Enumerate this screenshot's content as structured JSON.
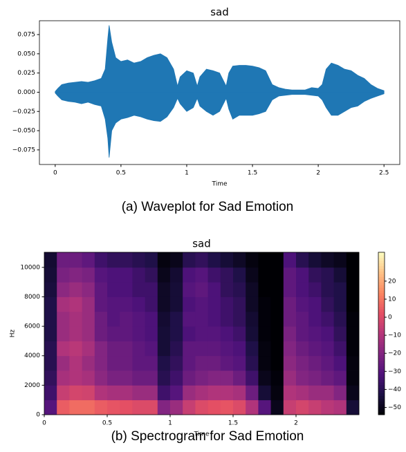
{
  "chart_data": [
    {
      "type": "waveform",
      "title": "sad",
      "xlabel": "Time",
      "caption": "(a) Waveplot for Sad Emotion",
      "color": "#1f77b4",
      "xlim": [
        -0.12,
        2.62
      ],
      "ylim": [
        -0.094,
        0.093
      ],
      "xticks": [
        0,
        0.5,
        1,
        1.5,
        2,
        2.5
      ],
      "yticks": [
        {
          "value": -0.075,
          "label": "−0.075"
        },
        {
          "value": -0.05,
          "label": "−0.050"
        },
        {
          "value": -0.025,
          "label": "−0.025"
        },
        {
          "value": 0,
          "label": "0.000"
        },
        {
          "value": 0.025,
          "label": "0.025"
        },
        {
          "value": 0.05,
          "label": "0.050"
        },
        0.075
      ],
      "x": [
        0,
        0.02,
        0.05,
        0.1,
        0.15,
        0.2,
        0.25,
        0.3,
        0.35,
        0.38,
        0.4,
        0.41,
        0.43,
        0.46,
        0.5,
        0.55,
        0.6,
        0.65,
        0.7,
        0.75,
        0.8,
        0.85,
        0.9,
        0.93,
        0.95,
        1.0,
        1.05,
        1.08,
        1.1,
        1.15,
        1.2,
        1.25,
        1.3,
        1.32,
        1.35,
        1.4,
        1.45,
        1.5,
        1.55,
        1.6,
        1.65,
        1.7,
        1.75,
        1.8,
        1.85,
        1.9,
        1.95,
        2.0,
        2.03,
        2.06,
        2.1,
        2.15,
        2.2,
        2.25,
        2.3,
        2.35,
        2.4,
        2.45,
        2.5
      ],
      "envelope_max": [
        0.001,
        0.005,
        0.01,
        0.012,
        0.013,
        0.014,
        0.013,
        0.015,
        0.018,
        0.03,
        0.07,
        0.087,
        0.065,
        0.045,
        0.04,
        0.042,
        0.038,
        0.04,
        0.045,
        0.048,
        0.05,
        0.045,
        0.03,
        0.008,
        0.02,
        0.028,
        0.025,
        0.008,
        0.02,
        0.03,
        0.028,
        0.025,
        0.008,
        0.025,
        0.034,
        0.035,
        0.035,
        0.034,
        0.032,
        0.028,
        0.01,
        0.006,
        0.004,
        0.003,
        0.003,
        0.003,
        0.006,
        0.005,
        0.01,
        0.03,
        0.038,
        0.035,
        0.03,
        0.028,
        0.022,
        0.018,
        0.01,
        0.005,
        0.002
      ],
      "envelope_min": [
        -0.001,
        -0.005,
        -0.01,
        -0.012,
        -0.013,
        -0.015,
        -0.013,
        -0.016,
        -0.018,
        -0.035,
        -0.06,
        -0.085,
        -0.05,
        -0.04,
        -0.035,
        -0.033,
        -0.03,
        -0.032,
        -0.035,
        -0.037,
        -0.038,
        -0.032,
        -0.02,
        -0.008,
        -0.015,
        -0.025,
        -0.02,
        -0.008,
        -0.018,
        -0.025,
        -0.03,
        -0.025,
        -0.008,
        -0.022,
        -0.035,
        -0.03,
        -0.03,
        -0.03,
        -0.028,
        -0.025,
        -0.01,
        -0.005,
        -0.004,
        -0.003,
        -0.003,
        -0.003,
        -0.004,
        -0.005,
        -0.01,
        -0.02,
        -0.03,
        -0.03,
        -0.025,
        -0.02,
        -0.018,
        -0.012,
        -0.008,
        -0.005,
        -0.002
      ]
    },
    {
      "type": "heatmap",
      "title": "sad",
      "xlabel": "Time",
      "ylabel": "Hz",
      "caption": "(b) Spectrogram for Sad Emotion",
      "colormap": "magma",
      "xlim": [
        0,
        2.5
      ],
      "ylim": [
        0,
        11025
      ],
      "xticks": [
        0,
        0.5,
        1,
        1.5,
        2
      ],
      "yticks": [
        0,
        2000,
        4000,
        6000,
        8000,
        10000
      ],
      "x_bins": [
        0,
        0.1,
        0.2,
        0.3,
        0.4,
        0.5,
        0.6,
        0.7,
        0.8,
        0.9,
        1.0,
        1.1,
        1.2,
        1.3,
        1.4,
        1.5,
        1.6,
        1.7,
        1.8,
        1.9,
        2.0,
        2.1,
        2.2,
        2.3,
        2.4,
        2.5
      ],
      "y_bins": [
        0,
        1000,
        2000,
        3000,
        4000,
        5000,
        6000,
        7000,
        8000,
        9000,
        10000,
        11025
      ],
      "values": [
        [
          -30,
          5,
          8,
          8,
          5,
          3,
          2,
          0,
          0,
          -20,
          -15,
          -5,
          0,
          2,
          3,
          0,
          -10,
          -30,
          -50,
          -5,
          -2,
          -5,
          -8,
          -10,
          -45
        ],
        [
          -35,
          -5,
          -2,
          -3,
          -10,
          -12,
          -12,
          -15,
          -15,
          -35,
          -30,
          -15,
          -12,
          -10,
          -10,
          -12,
          -25,
          -45,
          -52,
          -10,
          -12,
          -15,
          -15,
          -20,
          -50
        ],
        [
          -38,
          -12,
          -10,
          -12,
          -18,
          -22,
          -22,
          -25,
          -25,
          -40,
          -35,
          -25,
          -22,
          -20,
          -20,
          -25,
          -35,
          -50,
          -53,
          -15,
          -20,
          -22,
          -25,
          -28,
          -52
        ],
        [
          -40,
          -15,
          -10,
          -15,
          -20,
          -25,
          -25,
          -28,
          -28,
          -42,
          -38,
          -28,
          -25,
          -25,
          -28,
          -30,
          -40,
          -52,
          -54,
          -18,
          -22,
          -25,
          -28,
          -32,
          -52
        ],
        [
          -40,
          -10,
          -8,
          -12,
          -20,
          -25,
          -25,
          -28,
          -30,
          -45,
          -40,
          -28,
          -28,
          -28,
          -30,
          -32,
          -42,
          -52,
          -54,
          -20,
          -25,
          -28,
          -30,
          -35,
          -53
        ],
        [
          -42,
          -15,
          -12,
          -15,
          -25,
          -28,
          -28,
          -30,
          -32,
          -45,
          -42,
          -32,
          -30,
          -30,
          -32,
          -35,
          -45,
          -53,
          -54,
          -22,
          -28,
          -30,
          -32,
          -38,
          -53
        ],
        [
          -42,
          -15,
          -12,
          -15,
          -25,
          -30,
          -28,
          -30,
          -32,
          -46,
          -42,
          -30,
          -30,
          -32,
          -35,
          -38,
          -46,
          -53,
          -54,
          -25,
          -28,
          -32,
          -35,
          -40,
          -53
        ],
        [
          -42,
          -12,
          -10,
          -15,
          -28,
          -30,
          -30,
          -32,
          -35,
          -48,
          -45,
          -32,
          -30,
          -32,
          -35,
          -38,
          -48,
          -53,
          -54,
          -25,
          -30,
          -32,
          -38,
          -42,
          -54
        ],
        [
          -44,
          -18,
          -15,
          -18,
          -28,
          -32,
          -32,
          -35,
          -35,
          -48,
          -45,
          -30,
          -28,
          -32,
          -38,
          -40,
          -48,
          -54,
          -54,
          -28,
          -32,
          -35,
          -40,
          -42,
          -54
        ],
        [
          -45,
          -22,
          -20,
          -22,
          -30,
          -32,
          -32,
          -35,
          -38,
          -50,
          -46,
          -32,
          -30,
          -35,
          -38,
          -42,
          -50,
          -54,
          -54,
          -28,
          -32,
          -38,
          -40,
          -45,
          -54
        ],
        [
          -46,
          -25,
          -25,
          -28,
          -35,
          -38,
          -38,
          -40,
          -42,
          -52,
          -50,
          -40,
          -38,
          -42,
          -45,
          -48,
          -52,
          -54,
          -54,
          -32,
          -40,
          -45,
          -48,
          -50,
          -54
        ]
      ],
      "colorbar": {
        "lim": [
          -54,
          36
        ],
        "ticks": [
          {
            "value": -50,
            "label": "−50"
          },
          {
            "value": -40,
            "label": "−40"
          },
          {
            "value": -30,
            "label": "−30"
          },
          {
            "value": -20,
            "label": "−20"
          },
          {
            "value": -10,
            "label": "−10"
          },
          0,
          10,
          20
        ]
      }
    }
  ]
}
